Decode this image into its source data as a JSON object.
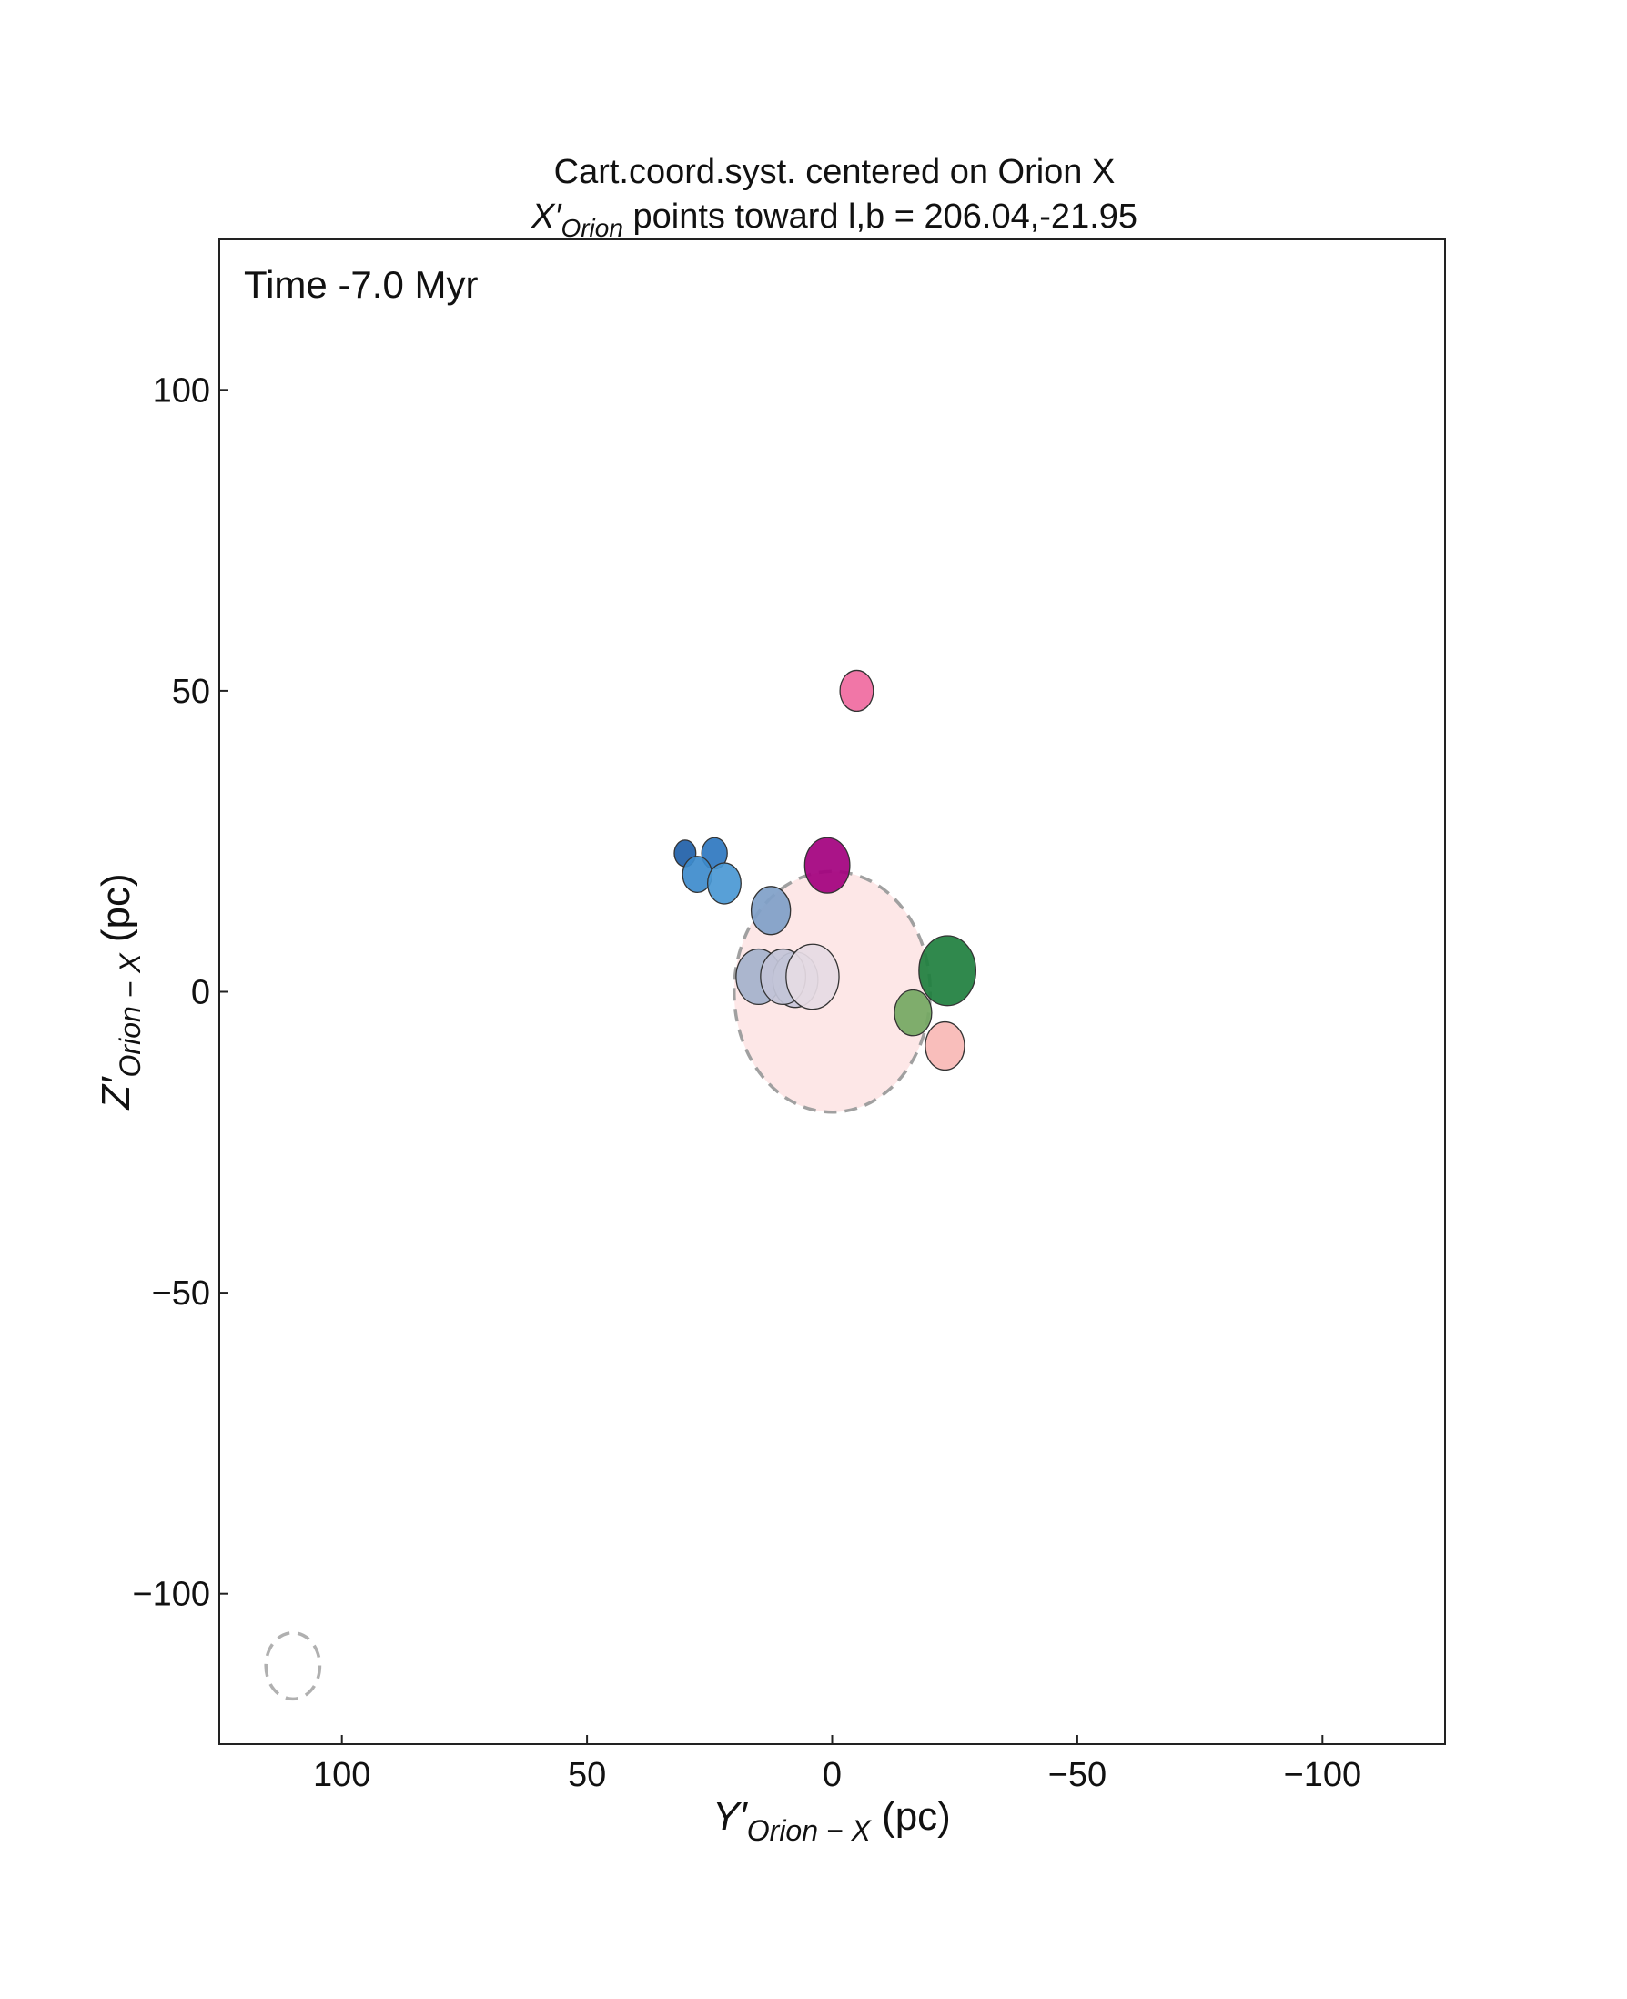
{
  "chart_data": {
    "type": "scatter",
    "title": "Cart.coord.syst. centered on Orion X",
    "subtitle_main": "X′",
    "subtitle_sub": "Orion",
    "subtitle_rest": " points toward l,b = 206.04,-21.95",
    "xlabel_main": "Y′",
    "xlabel_sub": "Orion − X",
    "xlabel_unit": " (pc)",
    "ylabel_main": "Z′",
    "ylabel_sub": "Orion − X",
    "ylabel_unit": " (pc)",
    "annotation": "Time  -7.0 Myr",
    "xlim": [
      125,
      -125
    ],
    "ylim": [
      -125,
      125
    ],
    "x_ticks": [
      100,
      50,
      0,
      -50,
      -100
    ],
    "x_tick_labels": [
      "100",
      "50",
      "0",
      "−50",
      "−100"
    ],
    "y_ticks": [
      100,
      50,
      0,
      -50,
      -100
    ],
    "y_tick_labels": [
      "100",
      "50",
      "0",
      "−50",
      "−100"
    ],
    "grid": false,
    "reference_circles": [
      {
        "x": 0,
        "y": 0,
        "r": 20,
        "fill": "#fde7e7",
        "stroke": "#a0a0a0"
      },
      {
        "x": 110,
        "y": -112,
        "r": 5.5,
        "fill": "none",
        "stroke": "#b0b0b0"
      }
    ],
    "points": [
      {
        "x": -5,
        "y": 50,
        "r": 3.4,
        "color": "#f06aa0"
      },
      {
        "x": 30,
        "y": 23,
        "r": 2.2,
        "color": "#1f5fa8"
      },
      {
        "x": 24,
        "y": 23,
        "r": 2.6,
        "color": "#2e77c0"
      },
      {
        "x": 27.5,
        "y": 19.5,
        "r": 3.0,
        "color": "#3d8bcc"
      },
      {
        "x": 22,
        "y": 18,
        "r": 3.4,
        "color": "#4a98d4"
      },
      {
        "x": 1,
        "y": 21,
        "r": 4.6,
        "color": "#a3007e"
      },
      {
        "x": 12.5,
        "y": 13.5,
        "r": 4.0,
        "color": "#7fa0c8"
      },
      {
        "x": 15,
        "y": 2.5,
        "r": 4.6,
        "color": "#a4b2cc"
      },
      {
        "x": 7.5,
        "y": 2,
        "r": 4.6,
        "color": "#c9c7da"
      },
      {
        "x": 10,
        "y": 2.5,
        "r": 4.6,
        "color": "#c2c4d8"
      },
      {
        "x": 4,
        "y": 2.5,
        "r": 5.4,
        "color": "#e6dbe4"
      },
      {
        "x": -23.5,
        "y": 3.5,
        "r": 5.8,
        "color": "#1e7f3e"
      },
      {
        "x": -16.5,
        "y": -3.5,
        "r": 3.8,
        "color": "#74a862"
      },
      {
        "x": -23,
        "y": -9,
        "r": 4.0,
        "color": "#f9b8b5"
      }
    ]
  }
}
